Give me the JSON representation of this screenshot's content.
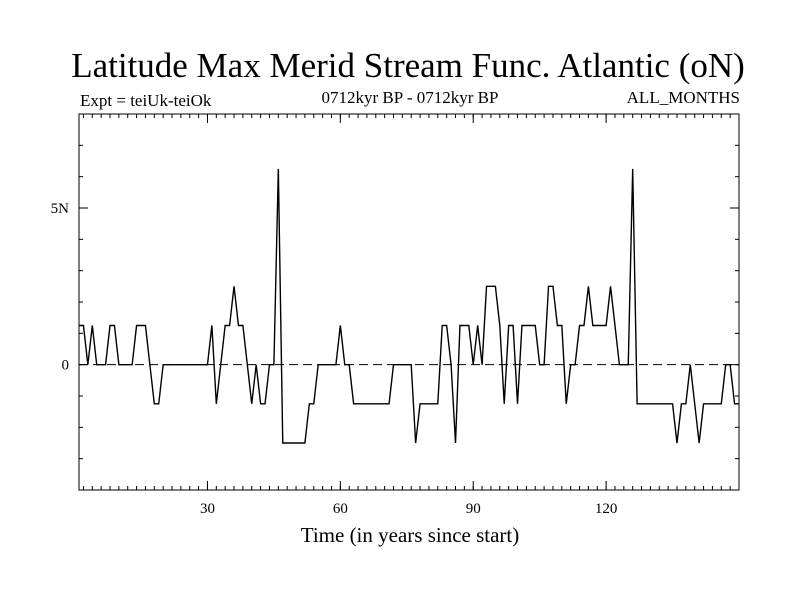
{
  "chart_data": {
    "type": "line",
    "title": "Latitude Max Merid Stream Func. Atlantic (oN)",
    "subtitle_left": "Expt = teiUk-teiOk",
    "subtitle_center": "0712kyr BP - 0712kyr BP",
    "subtitle_right": "ALL_MONTHS",
    "xlabel": "Time (in years since start)",
    "ylabel": "",
    "xlim": [
      1,
      150
    ],
    "ylim": [
      -4,
      8
    ],
    "x_ticks": [
      30,
      60,
      90,
      120
    ],
    "x_tick_labels": [
      "30",
      "60",
      "90",
      "120"
    ],
    "y_ticks": [
      0,
      5
    ],
    "y_tick_labels": [
      "0",
      "5N"
    ],
    "zero_line": "dashed",
    "series": [
      {
        "name": "latitude max",
        "x": [
          1,
          2,
          3,
          4,
          5,
          6,
          7,
          8,
          9,
          10,
          11,
          12,
          13,
          14,
          15,
          16,
          17,
          18,
          19,
          20,
          21,
          22,
          23,
          24,
          25,
          26,
          27,
          28,
          29,
          30,
          31,
          32,
          33,
          34,
          35,
          36,
          37,
          38,
          39,
          40,
          41,
          42,
          43,
          44,
          45,
          46,
          47,
          48,
          49,
          50,
          51,
          52,
          53,
          54,
          55,
          56,
          57,
          58,
          59,
          60,
          61,
          62,
          63,
          64,
          65,
          66,
          67,
          68,
          69,
          70,
          71,
          72,
          73,
          74,
          75,
          76,
          77,
          78,
          79,
          80,
          81,
          82,
          83,
          84,
          85,
          86,
          87,
          88,
          89,
          90,
          91,
          92,
          93,
          94,
          95,
          96,
          97,
          98,
          99,
          100,
          101,
          102,
          103,
          104,
          105,
          106,
          107,
          108,
          109,
          110,
          111,
          112,
          113,
          114,
          115,
          116,
          117,
          118,
          119,
          120,
          121,
          122,
          123,
          124,
          125,
          126,
          127,
          128,
          129,
          130,
          131,
          132,
          133,
          134,
          135,
          136,
          137,
          138,
          139,
          140,
          141,
          142,
          143,
          144,
          145,
          146,
          147,
          148,
          149,
          150
        ],
        "values": [
          1.25,
          1.25,
          0,
          1.25,
          0,
          0,
          0,
          1.25,
          1.25,
          0,
          0,
          0,
          0,
          1.25,
          1.25,
          1.25,
          0,
          -1.25,
          -1.25,
          0,
          0,
          0,
          0,
          0,
          0,
          0,
          0,
          0,
          0,
          0,
          1.25,
          -1.25,
          0,
          1.25,
          1.25,
          2.5,
          1.25,
          1.25,
          0,
          -1.25,
          0,
          -1.25,
          -1.25,
          0,
          0,
          6.25,
          -2.5,
          -2.5,
          -2.5,
          -2.5,
          -2.5,
          -2.5,
          -1.25,
          -1.25,
          0,
          0,
          0,
          0,
          0,
          1.25,
          0,
          0,
          -1.25,
          -1.25,
          -1.25,
          -1.25,
          -1.25,
          -1.25,
          -1.25,
          -1.25,
          -1.25,
          0,
          0,
          0,
          0,
          0,
          -2.5,
          -1.25,
          -1.25,
          -1.25,
          -1.25,
          -1.25,
          1.25,
          1.25,
          0,
          -2.5,
          1.25,
          1.25,
          1.25,
          0,
          1.25,
          0,
          2.5,
          2.5,
          2.5,
          1.25,
          -1.25,
          1.25,
          1.25,
          -1.25,
          1.25,
          1.25,
          1.25,
          1.25,
          0,
          0,
          2.5,
          2.5,
          1.25,
          1.25,
          -1.25,
          0,
          0,
          1.25,
          1.25,
          2.5,
          1.25,
          1.25,
          1.25,
          1.25,
          2.5,
          1.25,
          0,
          0,
          0,
          6.25,
          -1.25,
          -1.25,
          -1.25,
          -1.25,
          -1.25,
          -1.25,
          -1.25,
          -1.25,
          -1.25,
          -2.5,
          -1.25,
          -1.25,
          0,
          -1.25,
          -2.5,
          -1.25,
          -1.25,
          -1.25,
          -1.25,
          -1.25,
          0,
          0,
          -1.25,
          -1.25
        ]
      }
    ]
  }
}
